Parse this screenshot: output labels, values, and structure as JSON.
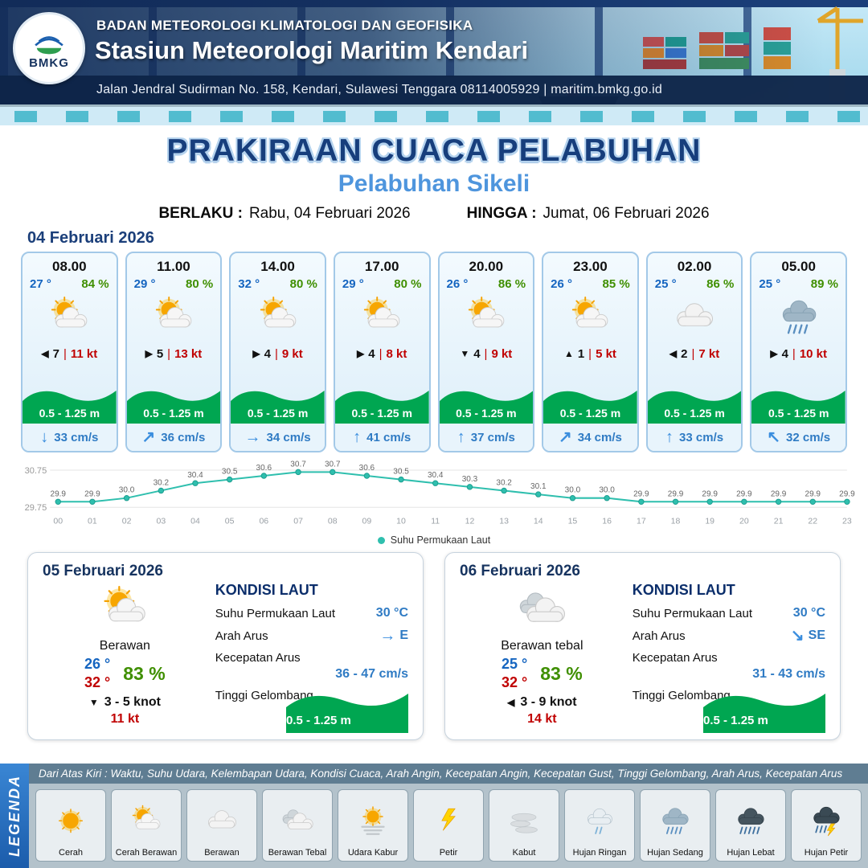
{
  "header": {
    "agency": "BADAN METEOROLOGI KLIMATOLOGI DAN GEOFISIKA",
    "station": "Stasiun Meteorologi Maritim Kendari",
    "address": "Jalan Jendral Sudirman No. 158, Kendari, Sulawesi Tenggara  08114005929 | maritim.bmkg.go.id",
    "logo_label": "BMKG"
  },
  "title": {
    "main": "PRAKIRAAN CUACA PELABUHAN",
    "port": "Pelabuhan Sikeli",
    "berlaku_label": "BERLAKU :",
    "berlaku_value": "Rabu, 04 Februari 2026",
    "hingga_label": "HINGGA :",
    "hingga_value": "Jumat, 06 Februari 2026"
  },
  "forecast_day": {
    "date": "04 Februari 2026",
    "cards": [
      {
        "time": "08.00",
        "temp": "27 °",
        "rh": "84 %",
        "icon": "cerah-berawan",
        "wind_arrow": "◀",
        "wind_val": "7",
        "wind_kt": "11 kt",
        "wave": "0.5 - 1.25 m",
        "current_arrow": "↓",
        "current": "33 cm/s"
      },
      {
        "time": "11.00",
        "temp": "29 °",
        "rh": "80 %",
        "icon": "cerah-berawan",
        "wind_arrow": "▶",
        "wind_val": "5",
        "wind_kt": "13 kt",
        "wave": "0.5 - 1.25 m",
        "current_arrow": "↗",
        "current": "36 cm/s"
      },
      {
        "time": "14.00",
        "temp": "32 °",
        "rh": "80 %",
        "icon": "cerah-berawan",
        "wind_arrow": "▶",
        "wind_val": "4",
        "wind_kt": "9 kt",
        "wave": "0.5 - 1.25 m",
        "current_arrow": "→",
        "current": "34 cm/s"
      },
      {
        "time": "17.00",
        "temp": "29 °",
        "rh": "80 %",
        "icon": "cerah-berawan",
        "wind_arrow": "▶",
        "wind_val": "4",
        "wind_kt": "8 kt",
        "wave": "0.5 - 1.25 m",
        "current_arrow": "↑",
        "current": "41 cm/s"
      },
      {
        "time": "20.00",
        "temp": "26 °",
        "rh": "86 %",
        "icon": "cerah-berawan",
        "wind_arrow": "▼",
        "wind_val": "4",
        "wind_kt": "9 kt",
        "wave": "0.5 - 1.25 m",
        "current_arrow": "↑",
        "current": "37 cm/s"
      },
      {
        "time": "23.00",
        "temp": "26 °",
        "rh": "85 %",
        "icon": "cerah-berawan",
        "wind_arrow": "▲",
        "wind_val": "1",
        "wind_kt": "5 kt",
        "wave": "0.5 - 1.25 m",
        "current_arrow": "↗",
        "current": "34 cm/s"
      },
      {
        "time": "02.00",
        "temp": "25 °",
        "rh": "86 %",
        "icon": "berawan",
        "wind_arrow": "◀",
        "wind_val": "2",
        "wind_kt": "7 kt",
        "wave": "0.5 - 1.25 m",
        "current_arrow": "↑",
        "current": "33 cm/s"
      },
      {
        "time": "05.00",
        "temp": "25 °",
        "rh": "89 %",
        "icon": "hujan-sedang",
        "wind_arrow": "▶",
        "wind_val": "4",
        "wind_kt": "10 kt",
        "wave": "0.5 - 1.25 m",
        "current_arrow": "↖",
        "current": "32 cm/s"
      }
    ]
  },
  "chart_data": {
    "type": "line",
    "title": "",
    "xlabel": "",
    "ylabel": "",
    "x": [
      "00",
      "01",
      "02",
      "03",
      "04",
      "05",
      "06",
      "07",
      "08",
      "09",
      "10",
      "11",
      "12",
      "13",
      "14",
      "15",
      "16",
      "17",
      "18",
      "19",
      "20",
      "21",
      "22",
      "23"
    ],
    "series": [
      {
        "name": "Suhu Permukaan Laut",
        "values": [
          29.9,
          29.9,
          30.0,
          30.2,
          30.4,
          30.5,
          30.6,
          30.7,
          30.7,
          30.6,
          30.5,
          30.4,
          30.3,
          30.2,
          30.1,
          30.0,
          30.0,
          29.9,
          29.9,
          29.9,
          29.9,
          29.9,
          29.9,
          29.9
        ]
      }
    ],
    "ylim": [
      29.75,
      30.75
    ],
    "yticks": [
      "30.75",
      "29.75"
    ],
    "line_color": "#2fbfae",
    "grid": true,
    "legend_position": "bottom"
  },
  "daily": [
    {
      "date": "05 Februari 2026",
      "condition": "Berawan",
      "icon": "cerah-berawan",
      "temp_min": "26 °",
      "temp_max": "32 °",
      "rh": "83 %",
      "wind_arrow": "▼",
      "wind_range": "3 - 5 knot",
      "gust": "11 kt",
      "sea": {
        "heading": "KONDISI LAUT",
        "sst_label": "Suhu Permukaan Laut",
        "sst": "30 °C",
        "dir_label": "Arah Arus",
        "dir_arrow": "→",
        "dir": "E",
        "speed_label": "Kecepatan Arus",
        "speed": "36 - 47 cm/s",
        "wave_label": "Tinggi Gelombang",
        "wave": "0.5 - 1.25 m"
      }
    },
    {
      "date": "06 Februari 2026",
      "condition": "Berawan tebal",
      "icon": "berawan-tebal",
      "temp_min": "25 °",
      "temp_max": "32 °",
      "rh": "83 %",
      "wind_arrow": "◀",
      "wind_range": "3 - 9 knot",
      "gust": "14 kt",
      "sea": {
        "heading": "KONDISI LAUT",
        "sst_label": "Suhu Permukaan Laut",
        "sst": "30 °C",
        "dir_label": "Arah Arus",
        "dir_arrow": "↘",
        "dir": "SE",
        "speed_label": "Kecepatan Arus",
        "speed": "31 - 43 cm/s",
        "wave_label": "Tinggi Gelombang",
        "wave": "0.5 - 1.25 m"
      }
    }
  ],
  "legend": {
    "sidebar": "LEGENDA",
    "note": "Dari Atas Kiri : Waktu, Suhu Udara, Kelembapan Udara, Kondisi Cuaca, Arah Angin, Kecepatan Angin, Kecepatan Gust, Tinggi Gelombang, Arah Arus, Kecepatan Arus",
    "items": [
      {
        "label": "Cerah",
        "icon": "cerah"
      },
      {
        "label": "Cerah Berawan",
        "icon": "cerah-berawan"
      },
      {
        "label": "Berawan",
        "icon": "berawan"
      },
      {
        "label": "Berawan Tebal",
        "icon": "berawan-tebal"
      },
      {
        "label": "Udara Kabur",
        "icon": "udara-kabur"
      },
      {
        "label": "Petir",
        "icon": "petir"
      },
      {
        "label": "Kabut",
        "icon": "kabut"
      },
      {
        "label": "Hujan Ringan",
        "icon": "hujan-ringan"
      },
      {
        "label": "Hujan Sedang",
        "icon": "hujan-sedang"
      },
      {
        "label": "Hujan Lebat",
        "icon": "hujan-lebat"
      },
      {
        "label": "Hujan Petir",
        "icon": "hujan-petir"
      }
    ]
  },
  "colors": {
    "navy": "#16335f",
    "title_blue": "#173e7c",
    "port_blue": "#4e95dd",
    "temp_blue": "#1565c0",
    "humidity_green": "#3f8f00",
    "knots_red": "#c00000",
    "wave_green": "#00a651",
    "current_blue": "#2f7bc4",
    "chart_teal": "#2fbfae"
  }
}
